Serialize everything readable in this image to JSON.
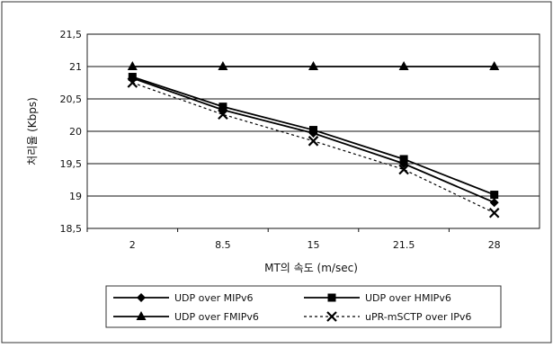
{
  "chart_data": {
    "type": "line",
    "title": "",
    "xlabel": "MT의 속도 (m/sec)",
    "ylabel": "처리율 (Kbps)",
    "categories": [
      "2",
      "8.5",
      "15",
      "21.5",
      "28"
    ],
    "ylim": [
      18.5,
      21.5
    ],
    "yticks": [
      "21,5",
      "21",
      "20,5",
      "20",
      "19,5",
      "19",
      "18,5"
    ],
    "ytick_values": [
      21.5,
      21,
      20.5,
      20,
      19.5,
      19,
      18.5
    ],
    "grid": true,
    "legend_position": "bottom",
    "series": [
      {
        "name": "UDP over MIPv6",
        "values": [
          20.82,
          20.33,
          19.97,
          19.5,
          18.9
        ],
        "marker": "diamond",
        "line": "solid",
        "color": "#000000"
      },
      {
        "name": "UDP over HMIPv6",
        "values": [
          20.84,
          20.38,
          20.02,
          19.57,
          19.02
        ],
        "marker": "square",
        "line": "solid",
        "color": "#000000"
      },
      {
        "name": "UDP over FMIPv6",
        "values": [
          21.0,
          21.0,
          21.0,
          21.0,
          21.0
        ],
        "marker": "triangle",
        "line": "solid",
        "color": "#000000"
      },
      {
        "name": "uPR-mSCTP over IPv6",
        "values": [
          20.75,
          20.26,
          19.85,
          19.41,
          18.74
        ],
        "marker": "x",
        "line": "dotted",
        "color": "#000000"
      }
    ]
  }
}
